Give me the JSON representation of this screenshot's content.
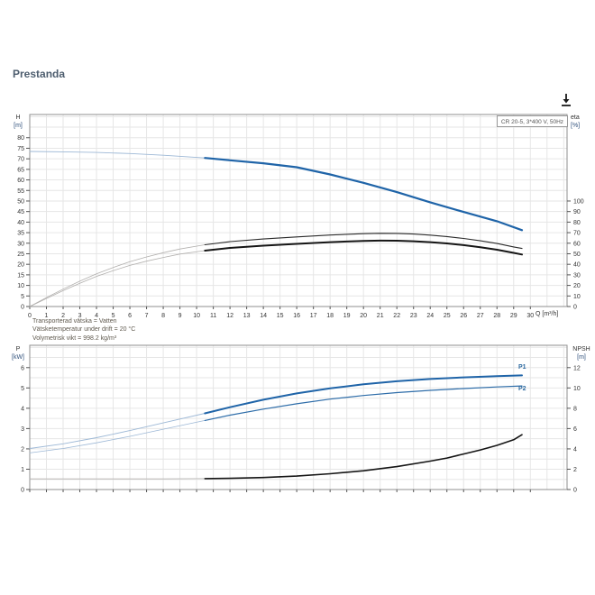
{
  "page": {
    "title": "Prestanda"
  },
  "toolbar": {
    "download_tooltip": "download"
  },
  "info": {
    "lines": [
      "Transporterad vätska = Vatten",
      "Vätsketemperatur under drift = 20 °C",
      "Volymetrisk vikt = 998.2 kg/m³"
    ]
  },
  "colors": {
    "curve_blue": "#1f64a8",
    "curve_black": "#1c1c1c",
    "faded_blue": "#9db8d6",
    "faded_gray": "#b2b0ae",
    "grid": "#e6e6e6",
    "frame": "#8f8f8f",
    "heading": "#4d5d6e"
  },
  "chart_data": [
    {
      "type": "line",
      "title": "CR 20-5, 3*400 V, 50Hz",
      "xlabel": "Q [m³/h]",
      "ylabel_left": [
        "H",
        "[m]"
      ],
      "ylabel_right": [
        "eta",
        "[%]"
      ],
      "x_range": [
        0,
        32.2
      ],
      "x_ticks": [
        0,
        1,
        2,
        3,
        4,
        5,
        6,
        7,
        8,
        9,
        10,
        11,
        12,
        13,
        14,
        15,
        16,
        17,
        18,
        19,
        20,
        21,
        22,
        23,
        24,
        25,
        26,
        27,
        28,
        29,
        30
      ],
      "y_left": {
        "min": 0,
        "max": 91,
        "grid_step": 5,
        "ticks": [
          0,
          5,
          10,
          15,
          20,
          25,
          30,
          35,
          40,
          45,
          50,
          55,
          60,
          65,
          70,
          75,
          80
        ]
      },
      "y_right": {
        "min": 0,
        "max": 100,
        "ticks": [
          0,
          10,
          20,
          30,
          40,
          50,
          60,
          70,
          80,
          90,
          100
        ],
        "maps_to_left": [
          0,
          50
        ]
      },
      "series": [
        {
          "name": "H-curve",
          "axis": "left",
          "color": "#1f64a8",
          "faded_color": "#9db8d6",
          "width": 2.2,
          "faded_width": 0.9,
          "solid_from": 10.5,
          "points": [
            [
              0,
              73.5
            ],
            [
              2,
              73.3
            ],
            [
              4,
              73.0
            ],
            [
              6,
              72.5
            ],
            [
              8,
              71.7
            ],
            [
              10.5,
              70.4
            ],
            [
              12,
              69.3
            ],
            [
              14,
              67.9
            ],
            [
              16,
              66.0
            ],
            [
              18,
              62.6
            ],
            [
              20,
              58.6
            ],
            [
              22,
              54.2
            ],
            [
              24,
              49.4
            ],
            [
              26,
              44.8
            ],
            [
              28,
              40.4
            ],
            [
              29.5,
              36.2
            ]
          ]
        },
        {
          "name": "eta-pump",
          "axis": "right",
          "color": "#2a2a2a",
          "faded_color": "#b2b0ae",
          "width": 1.1,
          "faded_width": 0.8,
          "solid_from": 10.5,
          "points": [
            [
              0,
              0
            ],
            [
              1,
              8.5
            ],
            [
              2,
              16.5
            ],
            [
              3,
              24
            ],
            [
              4,
              31
            ],
            [
              5,
              37
            ],
            [
              6,
              42.5
            ],
            [
              7,
              47
            ],
            [
              8,
              51
            ],
            [
              9,
              54.5
            ],
            [
              10.5,
              58.5
            ],
            [
              12,
              61.5
            ],
            [
              14,
              64
            ],
            [
              16,
              66
            ],
            [
              18,
              67.8
            ],
            [
              20,
              69
            ],
            [
              21,
              69.4
            ],
            [
              22,
              69.3
            ],
            [
              23,
              68.7
            ],
            [
              24,
              67.7
            ],
            [
              25,
              66.3
            ],
            [
              26,
              64.5
            ],
            [
              27,
              62.3
            ],
            [
              28,
              59.7
            ],
            [
              29,
              56.5
            ],
            [
              29.5,
              55
            ]
          ]
        },
        {
          "name": "eta-total",
          "axis": "right",
          "color": "#151515",
          "faded_color": "#b2b0ae",
          "width": 2,
          "faded_width": 0.8,
          "solid_from": 10.5,
          "points": [
            [
              0,
              0
            ],
            [
              1,
              7.5
            ],
            [
              2,
              15
            ],
            [
              3,
              22
            ],
            [
              4,
              28.5
            ],
            [
              5,
              34
            ],
            [
              6,
              39
            ],
            [
              7,
              43
            ],
            [
              8,
              46.5
            ],
            [
              9,
              49.7
            ],
            [
              10.5,
              53
            ],
            [
              12,
              55.5
            ],
            [
              14,
              57.7
            ],
            [
              16,
              59.4
            ],
            [
              18,
              61
            ],
            [
              20,
              62.2
            ],
            [
              21,
              62.5
            ],
            [
              22,
              62.4
            ],
            [
              23,
              61.9
            ],
            [
              24,
              61
            ],
            [
              25,
              59.8
            ],
            [
              26,
              58.2
            ],
            [
              27,
              56.2
            ],
            [
              28,
              53.8
            ],
            [
              29,
              50.8
            ],
            [
              29.5,
              49.3
            ]
          ]
        }
      ]
    },
    {
      "type": "line",
      "title": "",
      "xlabel": "",
      "ylabel_left": [
        "P",
        "[kW]"
      ],
      "ylabel_right": [
        "NPSH",
        "[m]"
      ],
      "x_range": [
        0,
        32.2
      ],
      "x_ticks": [
        0,
        1,
        2,
        3,
        4,
        5,
        6,
        7,
        8,
        9,
        10,
        11,
        12,
        13,
        14,
        15,
        16,
        17,
        18,
        19,
        20,
        21,
        22,
        23,
        24,
        25,
        26,
        27,
        28,
        29,
        30
      ],
      "y_left": {
        "min": 0,
        "max": 7.1,
        "grid_step": 0.5,
        "ticks": [
          0,
          1,
          2,
          3,
          4,
          5,
          6
        ]
      },
      "y_right": {
        "min": 0,
        "max": 12,
        "ticks": [
          0,
          2,
          4,
          6,
          8,
          10,
          12
        ],
        "maps_to_left": [
          0,
          6
        ]
      },
      "annotations": [
        {
          "label": "P1"
        },
        {
          "label": "P2"
        }
      ],
      "series": [
        {
          "name": "P1-curve",
          "axis": "left",
          "color": "#1f64a8",
          "faded_color": "#9db8d6",
          "width": 2,
          "faded_width": 0.9,
          "solid_from": 10.5,
          "points": [
            [
              0,
              2.02
            ],
            [
              2,
              2.25
            ],
            [
              4,
              2.55
            ],
            [
              6,
              2.9
            ],
            [
              8,
              3.28
            ],
            [
              10.5,
              3.75
            ],
            [
              12,
              4.05
            ],
            [
              14,
              4.42
            ],
            [
              16,
              4.73
            ],
            [
              18,
              4.98
            ],
            [
              20,
              5.18
            ],
            [
              22,
              5.33
            ],
            [
              24,
              5.44
            ],
            [
              26,
              5.52
            ],
            [
              28,
              5.58
            ],
            [
              29.5,
              5.62
            ]
          ]
        },
        {
          "name": "P2-curve",
          "axis": "left",
          "color": "#2e6da9",
          "faded_color": "#9db8d6",
          "width": 1.2,
          "faded_width": 0.8,
          "solid_from": 10.5,
          "points": [
            [
              0,
              1.8
            ],
            [
              2,
              2.02
            ],
            [
              4,
              2.3
            ],
            [
              6,
              2.62
            ],
            [
              8,
              2.97
            ],
            [
              10.5,
              3.4
            ],
            [
              12,
              3.66
            ],
            [
              14,
              3.96
            ],
            [
              16,
              4.22
            ],
            [
              18,
              4.45
            ],
            [
              20,
              4.63
            ],
            [
              22,
              4.77
            ],
            [
              24,
              4.88
            ],
            [
              26,
              4.97
            ],
            [
              28,
              5.05
            ],
            [
              29.5,
              5.1
            ]
          ]
        },
        {
          "name": "NPSH-curve",
          "axis": "right",
          "color": "#151515",
          "faded_color": "#b2b0ae",
          "width": 1.6,
          "faded_width": 0.8,
          "solid_from": 10.5,
          "points": [
            [
              0,
              1.05
            ],
            [
              4,
              1.05
            ],
            [
              8,
              1.05
            ],
            [
              10.5,
              1.07
            ],
            [
              12,
              1.1
            ],
            [
              14,
              1.18
            ],
            [
              16,
              1.32
            ],
            [
              18,
              1.55
            ],
            [
              20,
              1.85
            ],
            [
              22,
              2.25
            ],
            [
              24,
              2.8
            ],
            [
              25,
              3.1
            ],
            [
              26,
              3.5
            ],
            [
              27,
              3.9
            ],
            [
              28,
              4.35
            ],
            [
              29,
              4.9
            ],
            [
              29.5,
              5.4
            ]
          ]
        }
      ]
    }
  ]
}
